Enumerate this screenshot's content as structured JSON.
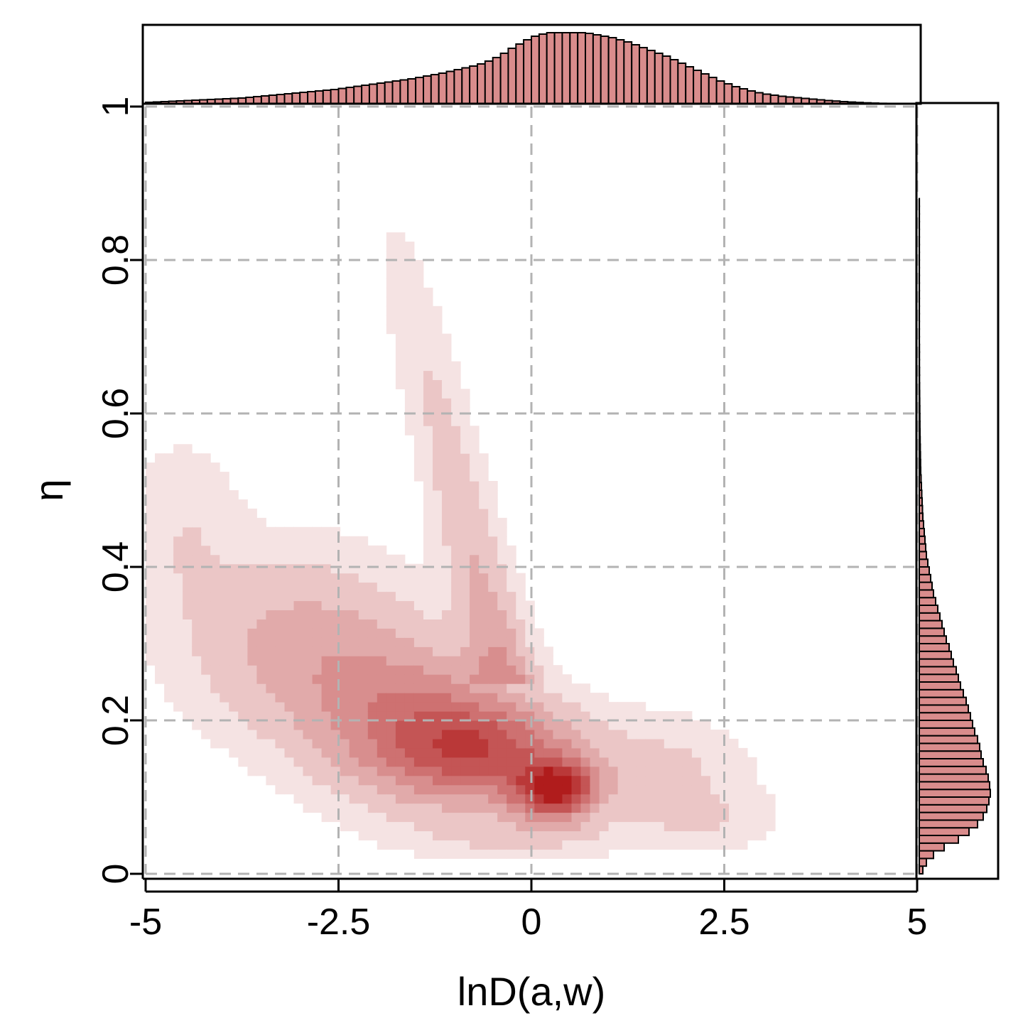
{
  "chart_data": {
    "type": "heatmap",
    "title": "",
    "xlabel": "lnD(a,w)",
    "ylabel": "η",
    "xlim": [
      -5,
      5
    ],
    "ylim": [
      0,
      1
    ],
    "x_ticks": [
      "-5",
      "-2.5",
      "0",
      "2.5",
      "5"
    ],
    "y_ticks": [
      "0",
      "0.2",
      "0.4",
      "0.6",
      "0.8",
      "1"
    ],
    "grid": "dashed",
    "colors": {
      "density_max": "#b01c1c",
      "hist_fill": "#d98c8c",
      "grid": "#b3b3b3"
    },
    "density_description_values": {
      "peak": {
        "x": 0.3,
        "y": 0.11
      },
      "note_points": [
        {
          "x": -1.8,
          "y": 0.85,
          "level": 0.05
        },
        {
          "x": -1.5,
          "y": 0.6,
          "level": 0.15
        },
        {
          "x": -4.8,
          "y": 0.5,
          "level": 0.05
        },
        {
          "x": -3.0,
          "y": 0.3,
          "level": 0.2
        },
        {
          "x": -1.0,
          "y": 0.2,
          "level": 0.5
        },
        {
          "x": 2.0,
          "y": 0.12,
          "level": 0.1
        },
        {
          "x": 3.0,
          "y": 0.07,
          "level": 0.03
        }
      ]
    },
    "top_histogram": {
      "x_range": [
        -5,
        5
      ],
      "bin_width": 0.1,
      "values": [
        0.02,
        0.025,
        0.03,
        0.035,
        0.04,
        0.045,
        0.05,
        0.055,
        0.06,
        0.065,
        0.07,
        0.075,
        0.08,
        0.09,
        0.1,
        0.11,
        0.12,
        0.13,
        0.14,
        0.15,
        0.16,
        0.17,
        0.18,
        0.19,
        0.2,
        0.215,
        0.23,
        0.245,
        0.26,
        0.275,
        0.29,
        0.305,
        0.32,
        0.335,
        0.35,
        0.37,
        0.39,
        0.41,
        0.43,
        0.455,
        0.48,
        0.505,
        0.53,
        0.56,
        0.6,
        0.65,
        0.71,
        0.78,
        0.84,
        0.9,
        0.95,
        0.98,
        1.0,
        1.0,
        1.0,
        1.0,
        1.0,
        0.99,
        0.97,
        0.95,
        0.93,
        0.9,
        0.87,
        0.83,
        0.79,
        0.75,
        0.71,
        0.67,
        0.62,
        0.57,
        0.52,
        0.47,
        0.42,
        0.37,
        0.32,
        0.28,
        0.24,
        0.21,
        0.18,
        0.155,
        0.135,
        0.12,
        0.105,
        0.095,
        0.085,
        0.075,
        0.065,
        0.055,
        0.045,
        0.038,
        0.03,
        0.024,
        0.018,
        0.013,
        0.009,
        0.006,
        0.004,
        0.002,
        0.001,
        0.0
      ]
    },
    "right_histogram": {
      "y_range": [
        0,
        1
      ],
      "bin_width": 0.01,
      "values": [
        0.05,
        0.1,
        0.2,
        0.35,
        0.55,
        0.7,
        0.82,
        0.9,
        0.95,
        0.98,
        1.0,
        0.99,
        0.97,
        0.94,
        0.9,
        0.87,
        0.85,
        0.82,
        0.78,
        0.75,
        0.72,
        0.69,
        0.66,
        0.62,
        0.58,
        0.55,
        0.52,
        0.48,
        0.45,
        0.42,
        0.38,
        0.35,
        0.32,
        0.29,
        0.26,
        0.23,
        0.2,
        0.18,
        0.16,
        0.14,
        0.12,
        0.1,
        0.09,
        0.08,
        0.07,
        0.06,
        0.05,
        0.045,
        0.04,
        0.035,
        0.03,
        0.025,
        0.02,
        0.018,
        0.016,
        0.014,
        0.012,
        0.01,
        0.009,
        0.008,
        0.007,
        0.006,
        0.005,
        0.004,
        0.003,
        0.003,
        0.002,
        0.002,
        0.002,
        0.001,
        0.001,
        0.001,
        0.001,
        0.001,
        0.001,
        0.001,
        0.001,
        0.001,
        0.001,
        0.001,
        0.001,
        0.001,
        0.001,
        0.001,
        0.001,
        0.001,
        0.001,
        0.001,
        0,
        0,
        0,
        0,
        0,
        0,
        0,
        0,
        0,
        0,
        0,
        0
      ]
    }
  }
}
